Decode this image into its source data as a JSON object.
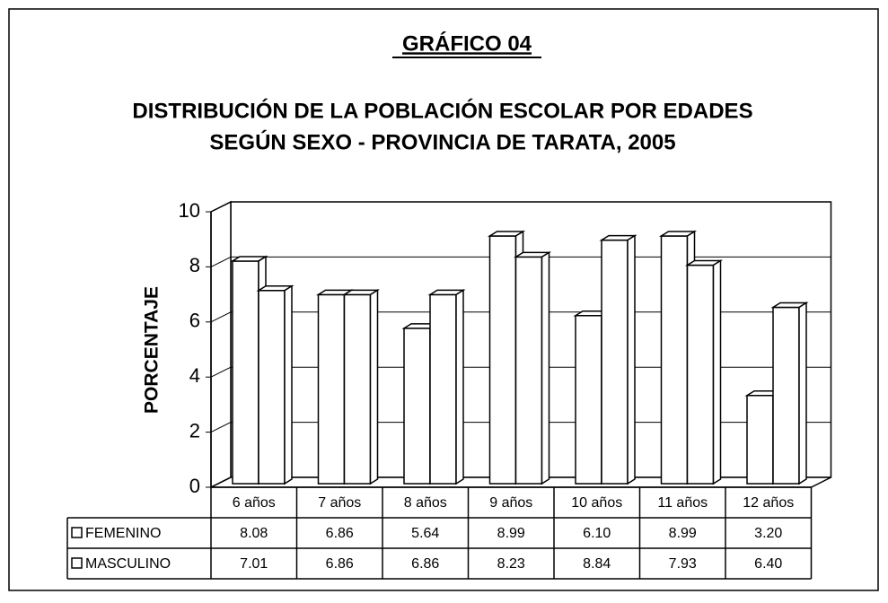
{
  "chart_data": {
    "type": "bar3d",
    "title": "GRÁFICO 04",
    "subtitle": [
      "DISTRIBUCIÓN DE LA POBLACIÓN ESCOLAR POR EDADES",
      "SEGÚN SEXO - PROVINCIA DE TARATA, 2005"
    ],
    "ylabel": "PORCENTAJE",
    "categories": [
      "6 años",
      "7 años",
      "8 años",
      "9 años",
      "10 años",
      "11 años",
      "12 años"
    ],
    "series": [
      {
        "name": "FEMENINO",
        "color": "#ffffff",
        "values": [
          8.08,
          6.86,
          5.64,
          8.99,
          6.1,
          8.99,
          3.2
        ],
        "value_labels": [
          "8.08",
          "6.86",
          "5.64",
          "8.99",
          "6.10",
          "8.99",
          "3.20"
        ]
      },
      {
        "name": "MASCULINO",
        "color": "#ffffff",
        "values": [
          7.01,
          6.86,
          6.86,
          8.23,
          8.84,
          7.93,
          6.4
        ],
        "value_labels": [
          "7.01",
          "6.86",
          "6.86",
          "8.23",
          "8.84",
          "7.93",
          "6.40"
        ]
      }
    ],
    "ylim": [
      0,
      10
    ],
    "yticks": [
      0,
      2,
      4,
      6,
      8,
      10
    ],
    "grid": true
  }
}
